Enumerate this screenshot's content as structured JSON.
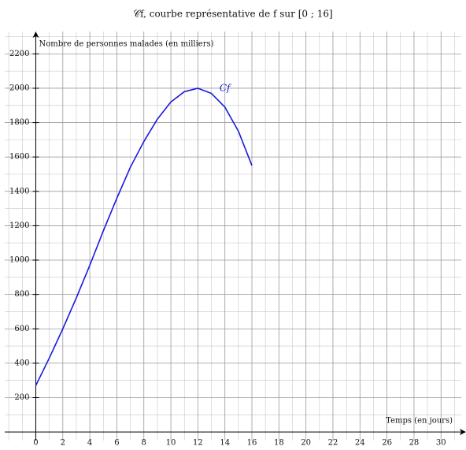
{
  "chart_data": {
    "type": "line",
    "title": "𝒞f, courbe représentative de f sur [0 ; 16]",
    "y_label": "Nombre de personnes malades (en milliers)",
    "x_label": "Temps (en jours)",
    "annotation": "Cf",
    "x": [
      0,
      1,
      2,
      3,
      4,
      5,
      6,
      7,
      8,
      9,
      10,
      11,
      12,
      13,
      14,
      15,
      16
    ],
    "series": [
      {
        "name": "Cf",
        "color": "#1a1adf",
        "values": [
          270,
          430,
          600,
          780,
          970,
          1170,
          1360,
          1540,
          1690,
          1820,
          1920,
          1980,
          2000,
          1970,
          1890,
          1750,
          1550
        ]
      }
    ],
    "xlim": [
      -2.3,
      31.5
    ],
    "ylim": [
      -50,
      2330
    ],
    "xticks": [
      0,
      2,
      4,
      6,
      8,
      10,
      12,
      14,
      16,
      18,
      20,
      22,
      24,
      26,
      28,
      30
    ],
    "yticks": [
      200,
      400,
      600,
      800,
      1000,
      1200,
      1400,
      1600,
      1800,
      2000,
      2200
    ],
    "grid": true
  }
}
